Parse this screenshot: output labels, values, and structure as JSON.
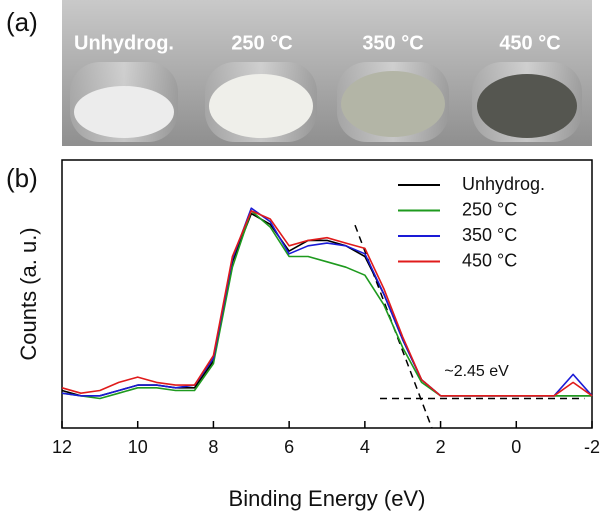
{
  "panels": {
    "a": "(a)",
    "b": "(b)"
  },
  "photo": {
    "labels": [
      "Unhydrog.",
      "250 °C",
      "350 °C",
      "450 °C"
    ]
  },
  "chart_data": {
    "type": "line",
    "xlabel": "Binding Energy (eV)",
    "ylabel": "Counts (a. u.)",
    "x": [
      12,
      11.5,
      11,
      10.5,
      10,
      9.5,
      9,
      8.5,
      8,
      7.5,
      7,
      6.5,
      6,
      5.5,
      5,
      4.5,
      4,
      3.5,
      3,
      2.5,
      2,
      1.5,
      1,
      0.5,
      0,
      -0.5,
      -1,
      -1.5,
      -2
    ],
    "xlim": [
      12,
      -2
    ],
    "xticks": [
      12,
      10,
      8,
      6,
      4,
      2,
      0,
      -2
    ],
    "ylim": [
      0,
      100
    ],
    "legend": "upper right",
    "series": [
      {
        "name": "Unhydrog.",
        "color": "#000000",
        "values": [
          14,
          12,
          12,
          14,
          16,
          16,
          15,
          15,
          25,
          62,
          80,
          76,
          66,
          70,
          70,
          68,
          64,
          50,
          33,
          18,
          12,
          12,
          12,
          12,
          12,
          12,
          12,
          12,
          12
        ]
      },
      {
        "name": "250 °C",
        "color": "#1e9a1e",
        "values": [
          13,
          12,
          11,
          13,
          15,
          15,
          14,
          14,
          24,
          60,
          81,
          75,
          64,
          64,
          62,
          60,
          57,
          46,
          30,
          17,
          12,
          12,
          12,
          12,
          12,
          12,
          12,
          12,
          12
        ]
      },
      {
        "name": "350 °C",
        "color": "#1a1ad6",
        "values": [
          13,
          12,
          12,
          14,
          16,
          16,
          15,
          16,
          26,
          63,
          82,
          77,
          65,
          68,
          69,
          68,
          65,
          50,
          33,
          18,
          12,
          12,
          12,
          12,
          12,
          12,
          12,
          20,
          12
        ]
      },
      {
        "name": "450 °C",
        "color": "#e01b1b",
        "values": [
          15,
          13,
          14,
          17,
          19,
          17,
          16,
          16,
          27,
          64,
          81,
          78,
          68,
          70,
          71,
          69,
          67,
          52,
          34,
          18,
          12,
          12,
          12,
          12,
          12,
          12,
          12,
          17,
          12
        ]
      }
    ],
    "guides": [
      {
        "x": [
          4.26,
          2.23
        ],
        "y": [
          75.7,
          0
        ]
      },
      {
        "x": [
          3.6,
          -1.8
        ],
        "y": [
          11,
          11
        ]
      }
    ],
    "annotation": {
      "text": "~2.45 eV",
      "x": 1.9,
      "y": 21
    }
  }
}
